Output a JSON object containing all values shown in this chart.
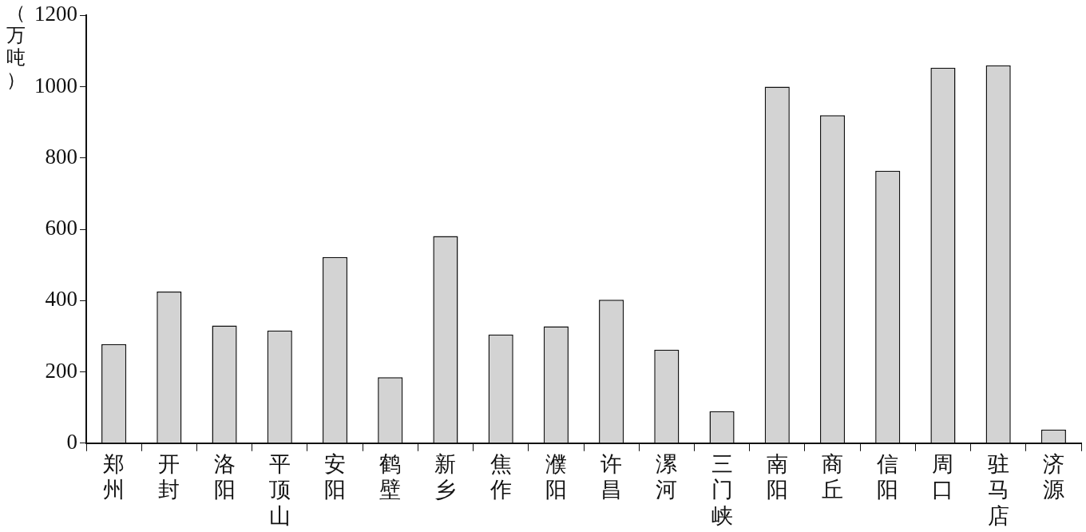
{
  "chart_data": {
    "type": "bar",
    "ylabel": "（万吨）",
    "categories": [
      "郑州",
      "开封",
      "洛阳",
      "平顶山",
      "安阳",
      "鹤壁",
      "新乡",
      "焦作",
      "濮阳",
      "许昌",
      "漯河",
      "三门峡",
      "南阳",
      "商丘",
      "信阳",
      "周口",
      "驻马店",
      "济源"
    ],
    "values": [
      278,
      425,
      330,
      316,
      522,
      185,
      581,
      305,
      328,
      402,
      262,
      90,
      1000,
      920,
      764,
      1053,
      1060,
      38
    ],
    "color": "#d3d3d3",
    "ylim": [
      0,
      1200
    ],
    "yticks": [
      0,
      200,
      400,
      600,
      800,
      1000,
      1200
    ]
  }
}
